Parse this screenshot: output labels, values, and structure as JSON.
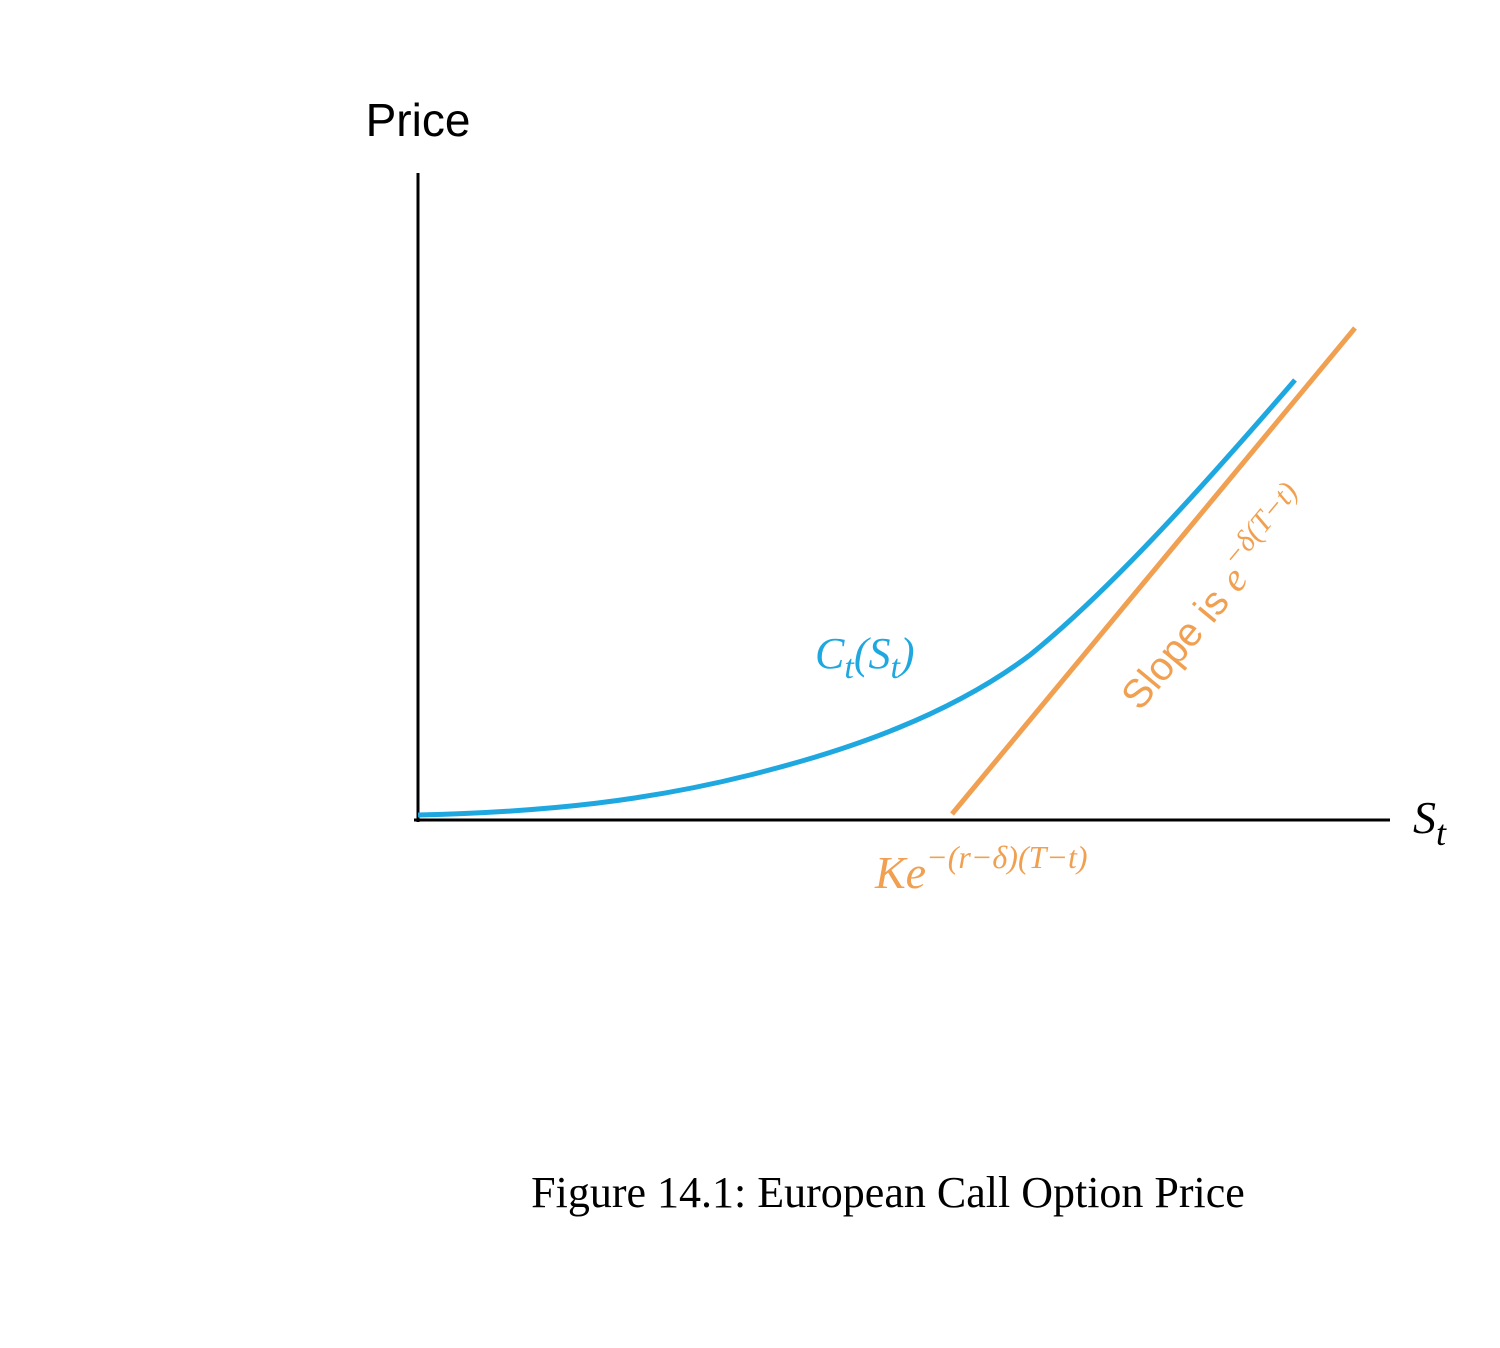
{
  "axes": {
    "y_label": "Price",
    "x_label": {
      "base": "S",
      "subscript": "t"
    }
  },
  "curve_label": {
    "symbol": "C",
    "subscript": "t",
    "open": "(S",
    "inner_subscript": "t",
    "close": ")"
  },
  "strike_label": {
    "base": "Ke",
    "superscript": "−(r−δ)(T−t)"
  },
  "slope_label": {
    "text": "Slope is ",
    "base": "e",
    "superscript": "−δ(T−t)"
  },
  "caption": "Figure 14.1: European Call Option Price"
}
